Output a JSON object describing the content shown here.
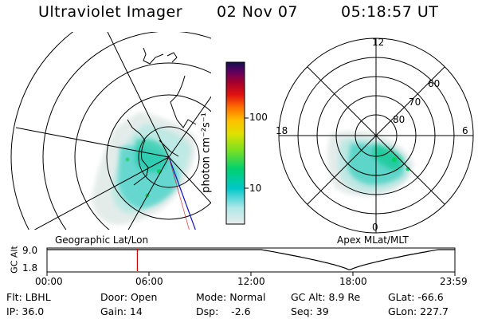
{
  "header": {
    "instrument": "Ultraviolet Imager",
    "date": "02 Nov 07",
    "time": "05:18:57 UT"
  },
  "left_panel": {
    "label": "Geographic Lat/Lon"
  },
  "right_panel": {
    "label": "Apex MLat/MLT",
    "mlt_labels": [
      "12",
      "18",
      "6",
      "0"
    ],
    "lat_labels": [
      "60",
      "70",
      "80"
    ]
  },
  "colorbar": {
    "unit_label": "photon cm⁻²s⁻¹",
    "ticks": [
      "100",
      "10"
    ],
    "scale": "log",
    "colors": [
      "#e8ecec",
      "#00c8c8",
      "#00d040",
      "#c0e000",
      "#ffc000",
      "#ff7000",
      "#d00000",
      "#800060",
      "#101060"
    ]
  },
  "altitude_plot": {
    "ylabel": "GC Alt",
    "yticks": [
      "9.0",
      "1.8"
    ],
    "xticks": [
      "00:00",
      "06:00",
      "12:00",
      "18:00",
      "23:59"
    ],
    "current_time_hours": 5.316,
    "perigee_time_hours": 17.8,
    "marker_color": "#d00000"
  },
  "status": {
    "row1": {
      "filter": "Flt: LBHL",
      "door": "Door: Open",
      "mode": "Mode: Normal",
      "gc_alt": "GC Alt: 8.9 Re",
      "glat": "GLat: -66.6"
    },
    "row2": {
      "ip": "IP: 36.0",
      "gain": "Gain: 14",
      "dsp": "Dsp:    -2.6",
      "seq": "Seq: 39",
      "glon": "GLon: 227.7"
    }
  }
}
